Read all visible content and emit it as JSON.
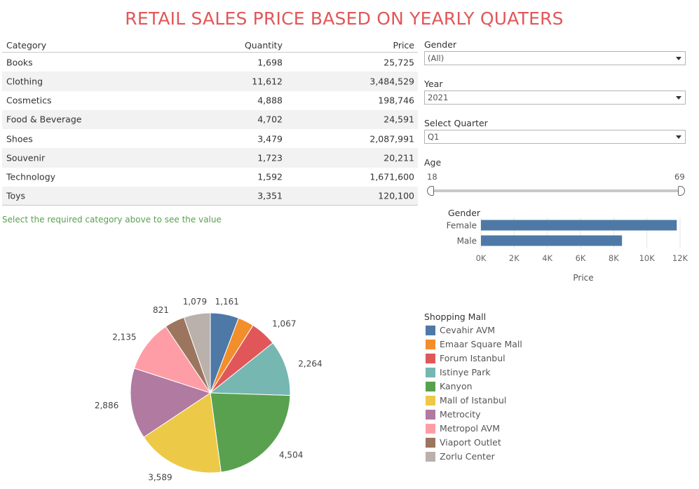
{
  "title": "RETAIL SALES PRICE BASED ON YEARLY QUATERS",
  "table": {
    "headers": {
      "category": "Category",
      "quantity": "Quantity",
      "price": "Price"
    },
    "rows": [
      {
        "category": "Books",
        "quantity": "1,698",
        "price": "25,725"
      },
      {
        "category": "Clothing",
        "quantity": "11,612",
        "price": "3,484,529"
      },
      {
        "category": "Cosmetics",
        "quantity": "4,888",
        "price": "198,746"
      },
      {
        "category": "Food & Beverage",
        "quantity": "4,702",
        "price": "24,591"
      },
      {
        "category": "Shoes",
        "quantity": "3,479",
        "price": "2,087,991"
      },
      {
        "category": "Souvenir",
        "quantity": "1,723",
        "price": "20,211"
      },
      {
        "category": "Technology",
        "quantity": "1,592",
        "price": "1,671,600"
      },
      {
        "category": "Toys",
        "quantity": "3,351",
        "price": "120,100"
      }
    ]
  },
  "hint": "Select the required category above to see the value",
  "filters": {
    "gender": {
      "label": "Gender",
      "value": "(All)"
    },
    "year": {
      "label": "Year",
      "value": "2021"
    },
    "quarter": {
      "label": "Select Quarter",
      "value": "Q1"
    },
    "age": {
      "label": "Age",
      "min": "18",
      "max": "69"
    }
  },
  "chart_data": [
    {
      "type": "bar",
      "orientation": "horizontal",
      "title": "Gender",
      "xlabel": "Price",
      "categories": [
        "Female",
        "Male"
      ],
      "values": [
        11800,
        8500
      ],
      "xlim": [
        0,
        12000
      ],
      "x_ticks": [
        "0K",
        "2K",
        "4K",
        "6K",
        "8K",
        "10K",
        "12K"
      ],
      "color": "#4e79a7",
      "grid": true
    },
    {
      "type": "pie",
      "legend_title": "Shopping Mall",
      "legend_position": "right",
      "slices": [
        {
          "name": "Cevahir AVM",
          "value": 1161,
          "label": "1,161",
          "color": "#4e79a7"
        },
        {
          "name": "Emaar Square Mall",
          "value": 650,
          "label": "",
          "color": "#f28e2b"
        },
        {
          "name": "Forum Istanbul",
          "value": 1067,
          "label": "1,067",
          "color": "#e15759"
        },
        {
          "name": "Istinye Park",
          "value": 2264,
          "label": "2,264",
          "color": "#76b7b2"
        },
        {
          "name": "Kanyon",
          "value": 4504,
          "label": "4,504",
          "color": "#59a14f"
        },
        {
          "name": "Mall of Istanbul",
          "value": 3589,
          "label": "3,589",
          "color": "#edc948"
        },
        {
          "name": "Metrocity",
          "value": 2886,
          "label": "2,886",
          "color": "#b07aa1"
        },
        {
          "name": "Metropol AVM",
          "value": 2135,
          "label": "2,135",
          "color": "#ff9da7"
        },
        {
          "name": "Viaport Outlet",
          "value": 821,
          "label": "821",
          "color": "#9c755f"
        },
        {
          "name": "Zorlu Center",
          "value": 1079,
          "label": "1,079",
          "color": "#bab0ac"
        }
      ]
    }
  ]
}
